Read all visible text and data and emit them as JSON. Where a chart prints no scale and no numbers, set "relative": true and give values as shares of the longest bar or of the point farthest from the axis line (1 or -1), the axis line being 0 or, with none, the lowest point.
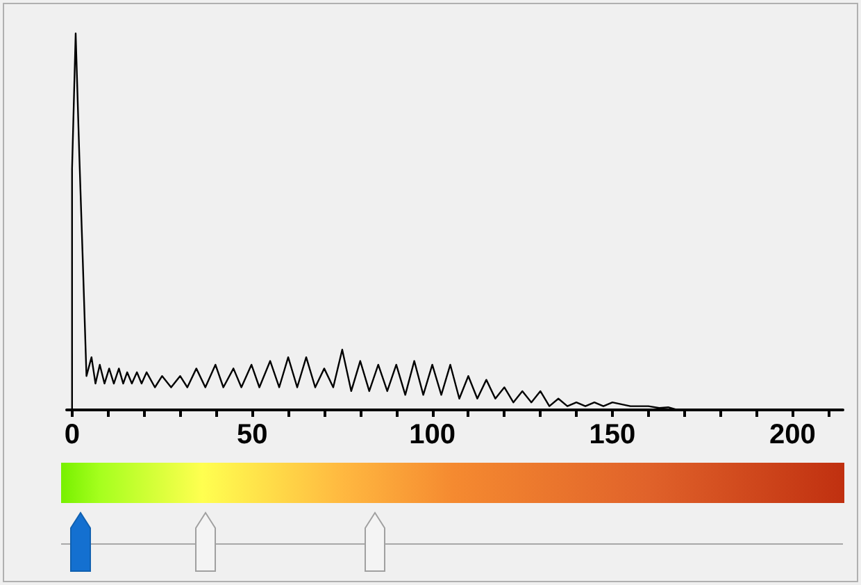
{
  "chart_data": {
    "type": "line",
    "relative": true,
    "marker": "none",
    "line_style": "solid",
    "tick_labels": "x",
    "xlim": [
      -1.5,
      214
    ],
    "xticks": [
      0,
      {
        "value": 10,
        "label": null
      },
      {
        "value": 20,
        "label": null
      },
      {
        "value": 30,
        "label": null
      },
      {
        "value": 40,
        "label": null
      },
      50,
      {
        "value": 60,
        "label": null
      },
      {
        "value": 70,
        "label": null
      },
      {
        "value": 80,
        "label": null
      },
      {
        "value": 90,
        "label": null
      },
      100,
      {
        "value": 110,
        "label": null
      },
      {
        "value": 120,
        "label": null
      },
      {
        "value": 130,
        "label": null
      },
      {
        "value": 140,
        "label": null
      },
      150,
      {
        "value": 160,
        "label": null
      },
      {
        "value": 170,
        "label": null
      },
      {
        "value": 180,
        "label": null
      },
      {
        "value": 190,
        "label": null
      },
      200,
      {
        "value": 210,
        "label": null
      }
    ],
    "series": [
      {
        "color": "#000000",
        "x": [
          0,
          0,
          1,
          2,
          3,
          4,
          5.4,
          6.5,
          7.7,
          9,
          10.3,
          11.6,
          13,
          14.2,
          15.3,
          16.6,
          18,
          19.3,
          20.7,
          23,
          25,
          27.5,
          30,
          32,
          34.5,
          37,
          39.8,
          42,
          44.8,
          47,
          49.8,
          52,
          55,
          57.5,
          60,
          62.5,
          65,
          67.5,
          70,
          72.5,
          75,
          77.5,
          80,
          82.5,
          85,
          87.5,
          90,
          92.5,
          95,
          97.5,
          100,
          102.5,
          105,
          107.5,
          110,
          112.5,
          115,
          117.5,
          120,
          122.5,
          125,
          127.5,
          130,
          132.5,
          135,
          137.5,
          140,
          142.5,
          145,
          147.5,
          150,
          155,
          160,
          163,
          165.5,
          168
        ],
        "values": [
          0,
          0.64,
          1,
          0.68,
          0.39,
          0.09,
          0.14,
          0.07,
          0.12,
          0.07,
          0.11,
          0.07,
          0.11,
          0.07,
          0.1,
          0.07,
          0.1,
          0.07,
          0.1,
          0.06,
          0.09,
          0.06,
          0.09,
          0.06,
          0.11,
          0.06,
          0.12,
          0.06,
          0.11,
          0.06,
          0.12,
          0.06,
          0.13,
          0.06,
          0.14,
          0.06,
          0.14,
          0.06,
          0.11,
          0.06,
          0.16,
          0.05,
          0.13,
          0.05,
          0.12,
          0.05,
          0.12,
          0.04,
          0.13,
          0.04,
          0.12,
          0.04,
          0.12,
          0.03,
          0.09,
          0.03,
          0.08,
          0.03,
          0.06,
          0.02,
          0.05,
          0.02,
          0.05,
          0.01,
          0.03,
          0.01,
          0.02,
          0.01,
          0.02,
          0.01,
          0.02,
          0.01,
          0.01,
          0.005,
          0.007,
          0
        ]
      }
    ]
  }
}
